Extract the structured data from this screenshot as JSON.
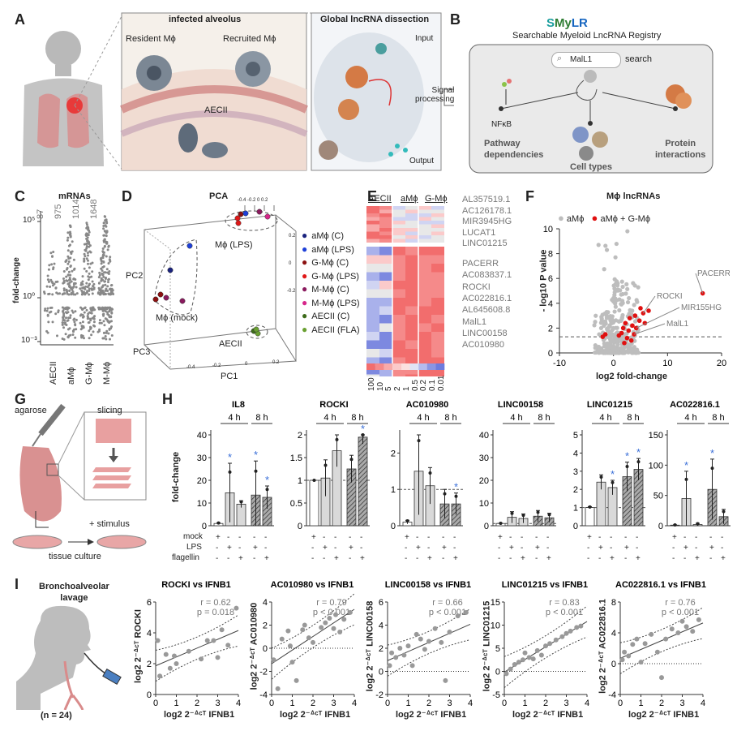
{
  "panel_labels": [
    "A",
    "B",
    "C",
    "D",
    "E",
    "F",
    "G",
    "H",
    "I"
  ],
  "panel_a": {
    "box1_title": "infected alveolus",
    "box2_title": "Global lncRNA dissection",
    "resident": "Resident Mϕ",
    "recruited": "Recruited Mϕ",
    "aecii": "AECII",
    "input": "Input",
    "signal": "Signal\nprocessing",
    "signal_l1": "Signal",
    "signal_l2": "processing",
    "output": "Output"
  },
  "panel_b": {
    "title_s": "S",
    "title_my": "My",
    "title_lr": "LR",
    "subtitle": "Searchable Myeloid LncRNA Registry",
    "search_value": "MalL1",
    "search_label": "search",
    "nfkb": "NFκB",
    "pathway_l1": "Pathway",
    "pathway_l2": "dependencies",
    "cell_types": "Cell types",
    "protein_l1": "Protein",
    "protein_l2": "interactions"
  },
  "panel_c": {
    "title": "mRNAs",
    "ylabel": "fold-change",
    "yticks": [
      "10⁵",
      "10⁰",
      "10⁻³"
    ],
    "counts": [
      "87",
      "975",
      "1014",
      "1648"
    ],
    "categories": [
      "AECII",
      "aMϕ",
      "G-Mϕ",
      "M-Mϕ"
    ]
  },
  "panel_d": {
    "title": "PCA",
    "pc1": "PC1",
    "pc2": "PC2",
    "pc3": "PC3",
    "cluster_lps": "Mϕ (LPS)",
    "cluster_mock": "Mϕ (mock)",
    "cluster_aecii": "AECII",
    "top_ticks": "-0.4 -0.2  0   0.2",
    "side_ticks": [
      "0.2",
      "0",
      "-0.2"
    ],
    "bottom_ticks": [
      "-0.4",
      "-0.2",
      "0",
      "0.2"
    ],
    "legend": [
      {
        "label": "aMϕ (C)",
        "color": "#1a237e"
      },
      {
        "label": "aMϕ (LPS)",
        "color": "#1e40d8"
      },
      {
        "label": "G-Mϕ (C)",
        "color": "#8b1010"
      },
      {
        "label": "G-Mϕ (LPS)",
        "color": "#e01818"
      },
      {
        "label": "M-Mϕ (C)",
        "color": "#8a1a5e"
      },
      {
        "label": "M-Mϕ (LPS)",
        "color": "#d6268a"
      },
      {
        "label": "AECII (C)",
        "color": "#3d6b1a"
      },
      {
        "label": "AECII (FLA)",
        "color": "#6aa032"
      }
    ]
  },
  "panel_e": {
    "headers": [
      "AECII",
      "aMϕ",
      "G-Mϕ"
    ],
    "genes_top": [
      "AL357519.1",
      "AC126178.1",
      "MIR3945HG",
      "LUCAT1",
      "LINC01215"
    ],
    "genes_bottom": [
      "PACERR",
      "AC083837.1",
      "ROCKI",
      "AC022816.1",
      "AL645608.8",
      "MalL1",
      "LINC00158",
      "AC010980"
    ],
    "scale": [
      "100",
      "10",
      "5",
      "2",
      "1",
      "0.5",
      "0.2",
      "0.1",
      "0.01"
    ]
  },
  "panel_f": {
    "title": "Mϕ lncRNAs",
    "legend": [
      "aMϕ",
      "aMϕ + G-Mϕ"
    ],
    "xlabel": "log2 fold-change",
    "ylabel": "- log10 P value",
    "xticks": [
      "-10",
      "0",
      "10",
      "20"
    ],
    "yticks": [
      "0",
      "2",
      "4",
      "6",
      "8",
      "10"
    ],
    "labels": [
      "PACERR",
      "ROCKI",
      "MIR155HG",
      "MalL1"
    ],
    "colors": {
      "grey": "#bdbdbd",
      "red": "#e01010"
    }
  },
  "panel_g": {
    "agarose": "agarose",
    "slicing": "slicing",
    "stimulus": "+ stimulus",
    "culture": "tissue culture"
  },
  "panel_h": {
    "ylabel": "fold-change",
    "time_labels": [
      "4 h",
      "8 h"
    ],
    "row_labels": [
      "mock",
      "LPS",
      "flagellin"
    ],
    "row_marks": [
      [
        "+",
        "-",
        "-",
        "-",
        "-"
      ],
      [
        "-",
        "+",
        "-",
        "+",
        "-"
      ],
      [
        "-",
        "-",
        "+",
        "-",
        "+"
      ]
    ],
    "charts": [
      {
        "title": "IL8",
        "yticks": [
          "0",
          "10",
          "20",
          "30",
          "40"
        ]
      },
      {
        "title": "ROCKI",
        "yticks": [
          "0",
          "0.5",
          "1",
          "1.5",
          "2"
        ]
      },
      {
        "title": "AC010980",
        "yticks": [
          "0",
          "1",
          "2"
        ]
      },
      {
        "title": "LINC00158",
        "yticks": [
          "0",
          "10",
          "20",
          "30",
          "40"
        ]
      },
      {
        "title": "LINC01215",
        "yticks": [
          "0",
          "1",
          "2",
          "3",
          "4",
          "5"
        ]
      },
      {
        "title": "AC022816.1",
        "yticks": [
          "0",
          "50",
          "100",
          "150"
        ]
      }
    ]
  },
  "panel_i": {
    "title_l1": "Bronchoalveolar",
    "title_l2": "lavage",
    "n": "(n = 24)",
    "xlabel": "log2 2⁻ᐞᶜᵀ IFNB1",
    "plots": [
      {
        "title": "ROCKI vs IFNB1",
        "r": "r = 0.62",
        "p": "p = 0.018",
        "ylabel": "log2 2⁻ᐞᶜᵀ ROCKI",
        "yticks": [
          "0",
          "2",
          "4",
          "6"
        ]
      },
      {
        "title": "AC010980 vs IFNB1",
        "r": "r = 0.79",
        "p": "p < 0.001",
        "ylabel": "log2 2⁻ᐞᶜᵀ AC010980",
        "yticks": [
          "-4",
          "-2",
          "0",
          "2",
          "4"
        ]
      },
      {
        "title": "LINC00158 vs IFNB1",
        "r": "r = 0.66",
        "p": "p < 0.001",
        "ylabel": "log2 2⁻ᐞᶜᵀ LINC00158",
        "yticks": [
          "-2",
          "0",
          "2",
          "4",
          "6"
        ]
      },
      {
        "title": "LINC01215 vs IFNB1",
        "r": "r = 0.83",
        "p": "p < 0.001",
        "ylabel": "log2 2⁻ᐞᶜᵀ LINC01215",
        "yticks": [
          "-5",
          "0",
          "5",
          "10",
          "15"
        ]
      },
      {
        "title": "AC022816.1 vs IFNB1",
        "r": "r = 0.76",
        "p": "p < 0.001",
        "ylabel": "log2 2⁻ᐞᶜᵀ AC022816.1",
        "yticks": [
          "-4",
          "0",
          "4",
          "8"
        ]
      }
    ],
    "xticks": [
      "0",
      "1",
      "2",
      "3",
      "4"
    ]
  },
  "chart_data": [
    {
      "type": "bar",
      "title": "IL8",
      "ylabel": "fold-change",
      "ylim": [
        0,
        40
      ],
      "categories": [
        "mock",
        "LPS 4h",
        "flagellin 4h",
        "LPS 8h",
        "flagellin 8h"
      ],
      "values": [
        1,
        14.5,
        9.5,
        13.5,
        12.5
      ],
      "errors": [
        0.3,
        13,
        1.5,
        15,
        5
      ],
      "significant": [
        false,
        true,
        false,
        true,
        true
      ]
    },
    {
      "type": "bar",
      "title": "ROCKI",
      "ylabel": "fold-change",
      "ylim": [
        0,
        2
      ],
      "categories": [
        "mock",
        "LPS 4h",
        "flagellin 4h",
        "LPS 8h",
        "flagellin 8h"
      ],
      "values": [
        1,
        1.05,
        1.65,
        1.25,
        1.95
      ],
      "errors": [
        0,
        0.4,
        0.35,
        0.3,
        0.15
      ],
      "significant": [
        false,
        false,
        false,
        false,
        true
      ]
    },
    {
      "type": "bar",
      "title": "AC010980",
      "ylabel": "fold-change",
      "ylim": [
        0,
        2.5
      ],
      "categories": [
        "mock",
        "LPS 4h",
        "flagellin 4h",
        "LPS 8h",
        "flagellin 8h"
      ],
      "values": [
        0.1,
        1.5,
        1.1,
        0.6,
        0.6
      ],
      "errors": [
        0.05,
        1.2,
        0.5,
        0.4,
        0.3
      ],
      "significant": [
        false,
        false,
        false,
        false,
        true
      ]
    },
    {
      "type": "bar",
      "title": "LINC00158",
      "ylabel": "fold-change",
      "ylim": [
        0,
        40
      ],
      "categories": [
        "mock",
        "LPS 4h",
        "flagellin 4h",
        "LPS 8h",
        "flagellin 8h"
      ],
      "values": [
        1,
        3.7,
        3.2,
        4.2,
        3.5
      ],
      "errors": [
        0.1,
        2.5,
        2,
        2.5,
        2
      ],
      "significant": [
        false,
        false,
        false,
        false,
        false
      ]
    },
    {
      "type": "bar",
      "title": "LINC01215",
      "ylabel": "fold-change",
      "ylim": [
        0,
        5
      ],
      "categories": [
        "mock",
        "LPS 4h",
        "flagellin 4h",
        "LPS 8h",
        "flagellin 8h"
      ],
      "values": [
        1,
        2.4,
        2.1,
        2.7,
        3.1
      ],
      "errors": [
        0.05,
        0.4,
        0.4,
        0.8,
        0.6
      ],
      "significant": [
        false,
        false,
        true,
        true,
        true
      ]
    },
    {
      "type": "bar",
      "title": "AC022816.1",
      "ylabel": "fold-change",
      "ylim": [
        0,
        150
      ],
      "categories": [
        "mock",
        "LPS 4h",
        "flagellin 4h",
        "LPS 8h",
        "flagellin 8h"
      ],
      "values": [
        1,
        45,
        2,
        60,
        15
      ],
      "errors": [
        0.5,
        45,
        2,
        50,
        12
      ],
      "significant": [
        false,
        true,
        false,
        true,
        false
      ]
    },
    {
      "type": "scatter",
      "title": "ROCKI vs IFNB1",
      "xlim": [
        0,
        4
      ],
      "ylim": [
        0,
        6
      ],
      "x": [
        0.1,
        0.2,
        0.5,
        0.7,
        0.9,
        1.0,
        1.6,
        2.2,
        2.5,
        2.8,
        3.0,
        3.2,
        3.5,
        3.9
      ],
      "y": [
        3.5,
        1.2,
        2.6,
        1.7,
        2.5,
        2.0,
        2.8,
        2.3,
        3.5,
        3.5,
        2.4,
        4.2,
        3.2,
        5.6
      ]
    },
    {
      "type": "scatter",
      "title": "AC010980 vs IFNB1",
      "xlim": [
        0,
        4
      ],
      "ylim": [
        -4,
        4
      ],
      "x": [
        0.1,
        0.3,
        0.5,
        0.8,
        0.9,
        1.0,
        1.2,
        1.5,
        1.6,
        1.8,
        2.0,
        2.4,
        2.6,
        2.8,
        3.0,
        3.1,
        3.3,
        3.5,
        3.8
      ],
      "y": [
        -1.0,
        -3.5,
        0.8,
        1.5,
        0.2,
        -1.2,
        -2.8,
        1.6,
        2.0,
        0.9,
        0.5,
        1.8,
        2.2,
        2.6,
        1.7,
        2.9,
        1.4,
        2.5,
        3.1
      ]
    },
    {
      "type": "scatter",
      "title": "LINC00158 vs IFNB1",
      "xlim": [
        0,
        4
      ],
      "ylim": [
        -2,
        6
      ],
      "x": [
        0.1,
        0.2,
        0.4,
        0.6,
        0.8,
        1.0,
        1.2,
        1.4,
        1.6,
        1.8,
        2.0,
        2.3,
        2.6,
        2.8,
        3.0,
        3.4,
        3.8
      ],
      "y": [
        0.5,
        1.6,
        1.2,
        2.0,
        1.4,
        2.2,
        0.5,
        3.2,
        2.8,
        1.9,
        2.6,
        3.7,
        2.5,
        -0.8,
        3.4,
        4.8,
        5.1
      ]
    },
    {
      "type": "scatter",
      "title": "LINC01215 vs IFNB1",
      "xlim": [
        0,
        4
      ],
      "ylim": [
        -5,
        15
      ],
      "x": [
        0.1,
        0.3,
        0.5,
        0.7,
        0.9,
        1.0,
        1.2,
        1.4,
        1.6,
        1.8,
        2.0,
        2.2,
        2.5,
        2.8,
        3.0,
        3.2,
        3.5,
        3.7
      ],
      "y": [
        -0.5,
        0.5,
        1.5,
        2.0,
        2.5,
        4.0,
        3.0,
        2.7,
        4.5,
        3.5,
        5.5,
        6.0,
        6.8,
        7.5,
        8.2,
        8.7,
        9.5,
        9.8
      ]
    },
    {
      "type": "scatter",
      "title": "AC022816.1 vs IFNB1",
      "xlim": [
        0,
        4
      ],
      "ylim": [
        -4,
        8
      ],
      "x": [
        0.1,
        0.2,
        0.4,
        0.6,
        0.8,
        1.0,
        1.2,
        1.5,
        1.8,
        2.0,
        2.2,
        2.5,
        2.8,
        3.0,
        3.2,
        3.5,
        3.8
      ],
      "y": [
        0.5,
        1.5,
        1.0,
        2.5,
        3.2,
        0.2,
        2.6,
        3.8,
        1.5,
        -1.8,
        3.2,
        4.5,
        4.0,
        5.5,
        4.8,
        4.2,
        5.7
      ]
    }
  ]
}
